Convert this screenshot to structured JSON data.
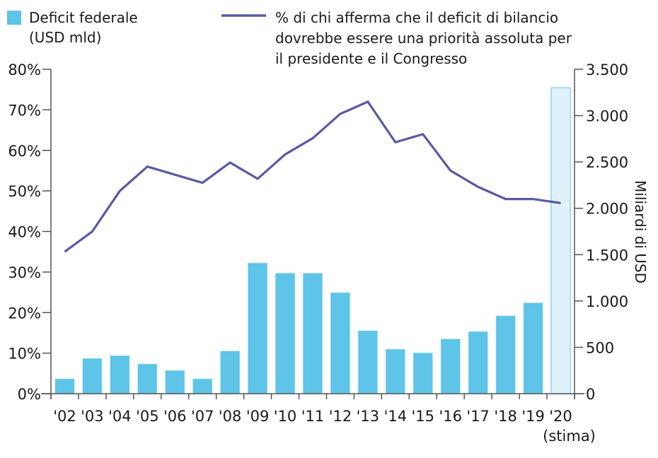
{
  "chart_data": {
    "type": "bar+line",
    "title": "",
    "categories": [
      "'02",
      "'03",
      "'04",
      "'05",
      "'06",
      "'07",
      "'08",
      "'09",
      "'10",
      "'11",
      "'12",
      "'13",
      "'14",
      "'15",
      "'16",
      "'17",
      "'18",
      "'19",
      "'20"
    ],
    "category_sublabels": {
      "'20": "(stima)"
    },
    "series": [
      {
        "name": "Deficit federale (USD mld)",
        "legend_lines": [
          "Deficit federale",
          "(USD mld)"
        ],
        "type": "bar",
        "axis": "right",
        "color": "#5ec4e8",
        "estimate_fill": "#dff2fa",
        "estimate_stroke": "#8fd3ef",
        "estimate_categories": [
          "'20"
        ],
        "values": [
          160,
          380,
          410,
          320,
          250,
          160,
          460,
          1410,
          1300,
          1300,
          1090,
          680,
          480,
          440,
          590,
          670,
          840,
          980,
          3300
        ]
      },
      {
        "name": "% di chi afferma che il deficit di bilancio dovrebbe essere una priorità assoluta per il presidente e il Congresso",
        "legend_lines": [
          "% di chi afferma che il deficit di bilancio",
          "dovrebbe essere una priorità assoluta per",
          "il presidente e il Congresso"
        ],
        "type": "line",
        "axis": "left",
        "color": "#5b59a6",
        "values": [
          35,
          40,
          50,
          56,
          54,
          52,
          57,
          53,
          59,
          63,
          69,
          72,
          62,
          64,
          55,
          51,
          48,
          48,
          47
        ]
      }
    ],
    "left_axis": {
      "label": "",
      "ylim": [
        0,
        80
      ],
      "ticks": [
        0,
        10,
        20,
        30,
        40,
        50,
        60,
        70,
        80
      ],
      "tick_labels": [
        "0%",
        "10%",
        "20%",
        "30%",
        "40%",
        "50%",
        "60%",
        "70%",
        "80%"
      ]
    },
    "right_axis": {
      "label": "Miliardi di USD",
      "ylim": [
        0,
        3500
      ],
      "ticks": [
        0,
        500,
        1000,
        1500,
        2000,
        2500,
        3000,
        3500
      ],
      "tick_labels": [
        "0",
        "500",
        "1.000",
        "1.500",
        "2.000",
        "2.500",
        "3.000",
        "3.500"
      ]
    },
    "xlabel": "",
    "grid": false,
    "legend_position": "top"
  },
  "colors": {
    "axis": "#555555",
    "text": "#1a1a1a"
  }
}
